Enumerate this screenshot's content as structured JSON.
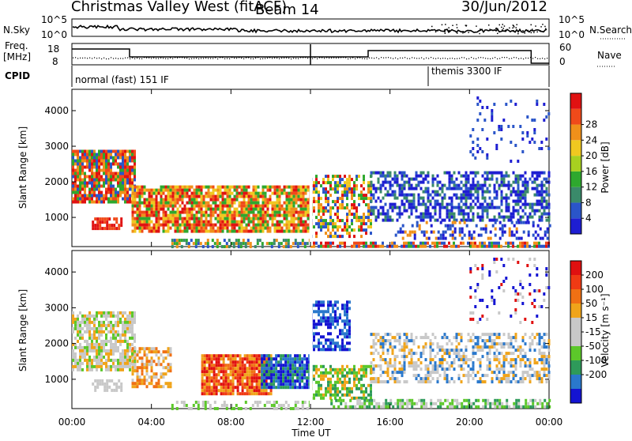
{
  "header": {
    "station": "Christmas Valley West (fitACF)",
    "beam": "Beam 14",
    "date": "30/Jun/2012"
  },
  "panels": {
    "nsky_label": "N.Sky",
    "nsky_tick_hi": "10^5",
    "nsky_tick_lo": "10^0",
    "nsearch_label": "N.Search",
    "freq_label_1": "Freq.",
    "freq_label_2": "[MHz]",
    "freq_tick_hi": "18",
    "freq_tick_lo": "8",
    "nave_label": "Nave",
    "nave_tick_hi": "60",
    "nave_tick_lo": "0",
    "cpid_label": "CPID",
    "cpid_1": "normal (fast) 151 IF",
    "cpid_2": "themis 3300 IF"
  },
  "chart_data": [
    {
      "type": "heatmap",
      "name": "power",
      "ylabel": "Slant Range [km]",
      "xlabel": "Time UT",
      "ylim": [
        180,
        4600
      ],
      "yticks": [
        1000,
        2000,
        3000,
        4000
      ],
      "xticks": [
        "00:00",
        "04:00",
        "08:00",
        "12:00",
        "16:00",
        "20:00",
        "00:00"
      ],
      "colorbar": {
        "label": "Power [dB]",
        "ticks": [
          "4",
          "8",
          "12",
          "16",
          "20",
          "24",
          "28"
        ],
        "colors": [
          "#1e1ed2",
          "#2a55c9",
          "#3a8a6a",
          "#2ea82e",
          "#a8d020",
          "#f0c820",
          "#f0901a",
          "#f04a1a",
          "#e01212"
        ]
      }
    },
    {
      "type": "heatmap",
      "name": "velocity",
      "ylabel": "Slant Range [km]",
      "xlabel": "Time UT",
      "ylim": [
        180,
        4600
      ],
      "yticks": [
        1000,
        2000,
        3000,
        4000
      ],
      "xticks": [
        "00:00",
        "04:00",
        "08:00",
        "12:00",
        "16:00",
        "20:00",
        "00:00"
      ],
      "colorbar": {
        "label": "Velocity [m s⁻¹]",
        "ticks": [
          "200",
          "100",
          "50",
          "15",
          "-15",
          "-50",
          "-100",
          "-200"
        ],
        "colors": [
          "#1414d2",
          "#2a78cc",
          "#2e9a5a",
          "#5cc82a",
          "#c8c8c8",
          "#c8c8c8",
          "#f0a41a",
          "#f07014",
          "#f03a14",
          "#e01010"
        ]
      }
    }
  ],
  "colors": {
    "power_strong": "#e01212",
    "power_mid": "#2ea82e",
    "power_weak": "#1e1ed2",
    "velocity_ground": "#c8c8c8",
    "velocity_away": "#e01010",
    "velocity_toward": "#1414d2"
  }
}
